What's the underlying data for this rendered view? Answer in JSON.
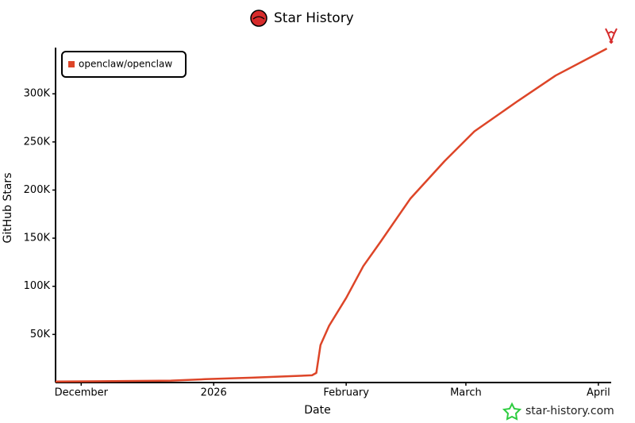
{
  "chart_data": {
    "type": "line",
    "title": "Star History",
    "x_label": "Date",
    "y_label": "GitHub Stars",
    "watermark": "star-history.com",
    "legend": "top-left",
    "xlim": [
      "2025-11-25",
      "2026-04-04"
    ],
    "xticks": [
      {
        "value": "2025-12-01",
        "label": "December"
      },
      {
        "value": "2026-01-01",
        "label": "2026"
      },
      {
        "value": "2026-02-01",
        "label": "February"
      },
      {
        "value": "2026-03-01",
        "label": "March"
      },
      {
        "value": "2026-04-01",
        "label": "April"
      }
    ],
    "ylim": [
      0,
      348000
    ],
    "yticks": [
      {
        "value": 50000,
        "label": "50K"
      },
      {
        "value": 100000,
        "label": "100K"
      },
      {
        "value": 150000,
        "label": "150K"
      },
      {
        "value": 200000,
        "label": "200K"
      },
      {
        "value": 250000,
        "label": "250K"
      },
      {
        "value": 300000,
        "label": "300K"
      }
    ],
    "x": [
      "2025-11-25",
      "2025-12-22",
      "2025-12-30",
      "2026-01-10",
      "2026-01-24",
      "2026-01-25",
      "2026-01-26",
      "2026-01-28",
      "2026-02-01",
      "2026-02-05",
      "2026-02-09",
      "2026-02-16",
      "2026-02-24",
      "2026-03-03",
      "2026-03-13",
      "2026-03-22",
      "2026-04-03"
    ],
    "series": [
      {
        "name": "openclaw/openclaw",
        "color": "#dd4528",
        "values": [
          1000,
          2000,
          3500,
          5000,
          7500,
          10000,
          39000,
          59000,
          88000,
          121000,
          146000,
          191000,
          230000,
          261000,
          292000,
          319000,
          347000
        ]
      }
    ]
  }
}
